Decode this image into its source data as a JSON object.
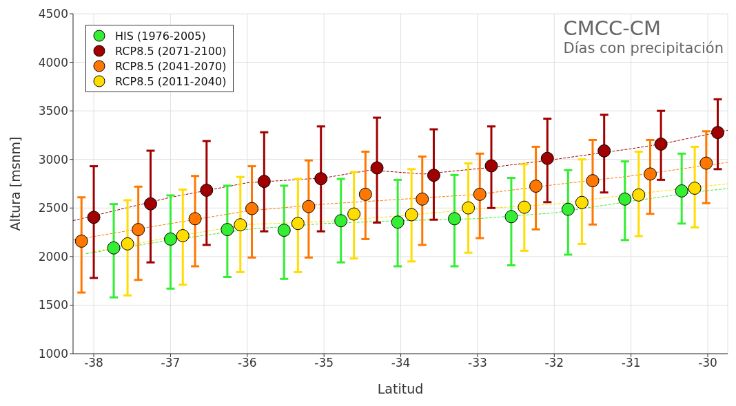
{
  "chart_data": {
    "type": "scatter",
    "title": "CMCC-CM",
    "subtitle": "Días con precipitación",
    "xlabel": "Latitud",
    "ylabel": "Altura [msnm]",
    "xlim": [
      -38.27,
      -29.74
    ],
    "ylim": [
      1000,
      4500
    ],
    "xticks": [
      -38,
      -37,
      -36,
      -35,
      -34,
      -33,
      -32,
      -31,
      -30
    ],
    "yticks": [
      1000,
      1500,
      2000,
      2500,
      3000,
      3500,
      4000,
      4500
    ],
    "grid": true,
    "legend": "top left",
    "series": [
      {
        "name": "HIS (1976-2005)",
        "marker": "circle",
        "color": "#33ee33",
        "x": [
          -37.74,
          -37.0,
          -36.26,
          -35.52,
          -34.78,
          -34.04,
          -33.3,
          -32.56,
          -31.82,
          -31.08,
          -30.34
        ],
        "values": [
          2089,
          2180,
          2278,
          2271,
          2369,
          2355,
          2390,
          2411,
          2487,
          2592,
          2676
        ],
        "errors": [
          [
            1580,
            2540
          ],
          [
            1670,
            2630
          ],
          [
            1790,
            2730
          ],
          [
            1770,
            2730
          ],
          [
            1940,
            2800
          ],
          [
            1900,
            2790
          ],
          [
            1900,
            2840
          ],
          [
            1910,
            2810
          ],
          [
            2020,
            2890
          ],
          [
            2170,
            2980
          ],
          [
            2340,
            3060
          ]
        ]
      },
      {
        "name": "RCP8.5 (2071-2100)",
        "marker": "circle",
        "color": "#a00000",
        "x": [
          -38.0,
          -37.26,
          -36.53,
          -35.78,
          -35.04,
          -34.31,
          -33.57,
          -32.82,
          -32.09,
          -31.35,
          -30.61,
          -29.87
        ],
        "values": [
          2404,
          2543,
          2683,
          2774,
          2802,
          2913,
          2837,
          2934,
          3011,
          3088,
          3158,
          3277
        ],
        "errors": [
          [
            1780,
            2930
          ],
          [
            1940,
            3090
          ],
          [
            2120,
            3190
          ],
          [
            2260,
            3280
          ],
          [
            2260,
            3340
          ],
          [
            2350,
            3430
          ],
          [
            2380,
            3310
          ],
          [
            2500,
            3340
          ],
          [
            2560,
            3420
          ],
          [
            2660,
            3460
          ],
          [
            2790,
            3500
          ],
          [
            2900,
            3620
          ]
        ]
      },
      {
        "name": "RCP8.5 (2041-2070)",
        "marker": "circle",
        "color": "#ff7700",
        "x": [
          -38.16,
          -37.42,
          -36.68,
          -35.94,
          -35.2,
          -34.46,
          -33.72,
          -32.97,
          -32.24,
          -31.5,
          -30.75,
          -30.02
        ],
        "values": [
          2159,
          2278,
          2390,
          2494,
          2515,
          2641,
          2592,
          2641,
          2725,
          2781,
          2850,
          2962
        ],
        "errors": [
          [
            1630,
            2610
          ],
          [
            1760,
            2720
          ],
          [
            1900,
            2830
          ],
          [
            1990,
            2930
          ],
          [
            1990,
            2990
          ],
          [
            2180,
            3080
          ],
          [
            2120,
            3030
          ],
          [
            2190,
            3060
          ],
          [
            2280,
            3130
          ],
          [
            2330,
            3200
          ],
          [
            2440,
            3200
          ],
          [
            2550,
            3290
          ]
        ]
      },
      {
        "name": "RCP8.5 (2011-2040)",
        "marker": "circle",
        "color": "#ffdd00",
        "x": [
          -37.56,
          -36.84,
          -36.09,
          -35.34,
          -34.61,
          -33.86,
          -33.12,
          -32.39,
          -31.64,
          -30.9,
          -30.17
        ],
        "values": [
          2131,
          2215,
          2327,
          2341,
          2438,
          2431,
          2501,
          2508,
          2557,
          2634,
          2704
        ],
        "errors": [
          [
            1600,
            2580
          ],
          [
            1710,
            2690
          ],
          [
            1840,
            2820
          ],
          [
            1840,
            2800
          ],
          [
            1980,
            2870
          ],
          [
            1950,
            2900
          ],
          [
            2040,
            2960
          ],
          [
            2060,
            2950
          ],
          [
            2130,
            3000
          ],
          [
            2210,
            3080
          ],
          [
            2300,
            3130
          ]
        ]
      },
      {
        "type": "line",
        "line_style": "dashed",
        "color": "#a00000",
        "x": [
          -38.27,
          -37,
          -36,
          -35,
          -34.4,
          -33.7,
          -32.8,
          -32,
          -31,
          -30.6,
          -29.74
        ],
        "values": [
          2370,
          2610,
          2760,
          2810,
          2890,
          2850,
          2920,
          3000,
          3110,
          3160,
          3300
        ]
      },
      {
        "type": "line",
        "line_style": "dashed",
        "color": "#ff7700",
        "x": [
          -38.27,
          -37,
          -36,
          -35,
          -34,
          -33,
          -32,
          -31,
          -29.74
        ],
        "values": [
          2170,
          2340,
          2470,
          2540,
          2590,
          2640,
          2740,
          2830,
          2970
        ]
      },
      {
        "type": "line",
        "line_style": "dashed",
        "color": "#33ee33",
        "x": [
          -38.1,
          -37,
          -36,
          -35,
          -34,
          -33,
          -32,
          -31,
          -30,
          -29.74
        ],
        "values": [
          2030,
          2170,
          2280,
          2340,
          2370,
          2390,
          2450,
          2570,
          2680,
          2700
        ]
      },
      {
        "type": "line",
        "line_style": "dashed",
        "color": "#ffdd00",
        "x": [
          -38,
          -37,
          -36,
          -35,
          -34,
          -33,
          -32,
          -31,
          -29.74
        ],
        "values": [
          2050,
          2200,
          2330,
          2360,
          2420,
          2490,
          2540,
          2640,
          2750
        ]
      }
    ]
  }
}
